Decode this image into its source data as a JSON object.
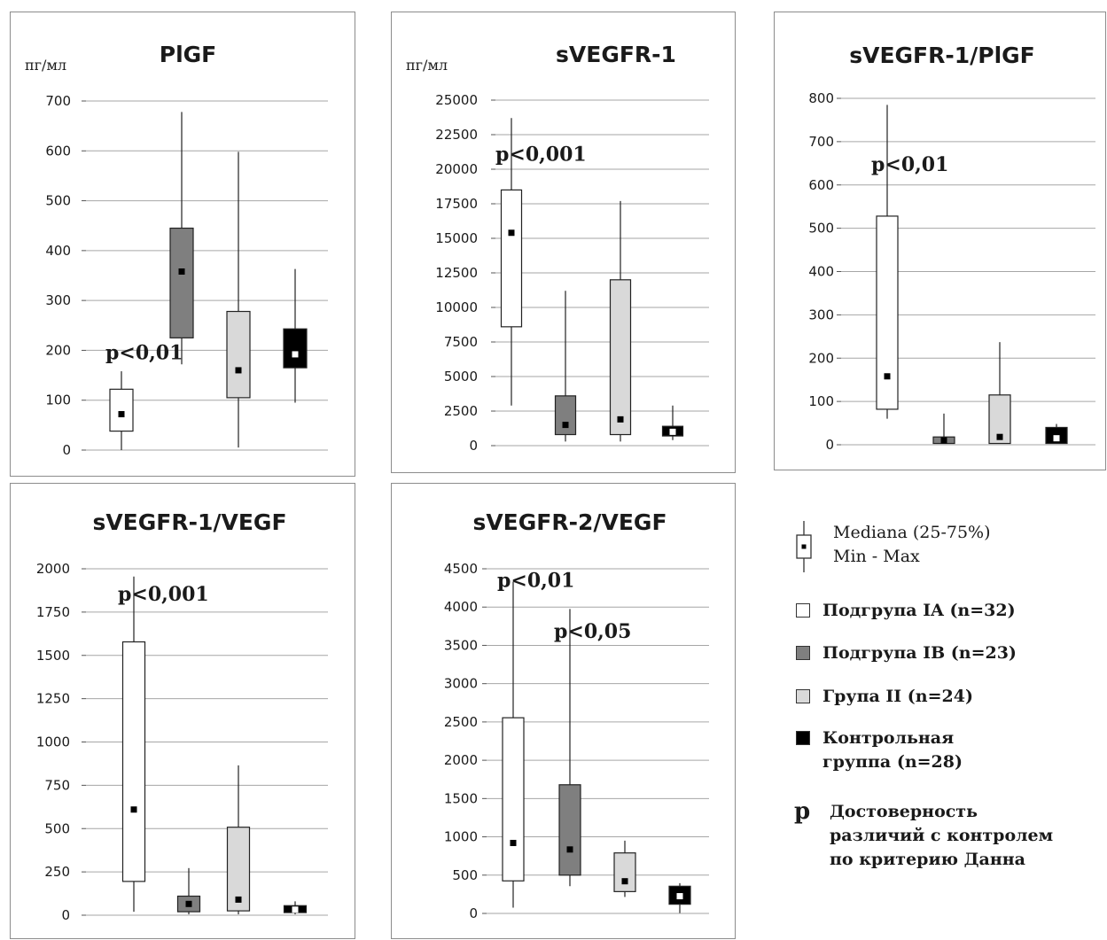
{
  "colors": {
    "group_ia": "#ffffff",
    "group_ib": "#7f7f7f",
    "group_ii": "#d9d9d9",
    "control": "#000000",
    "median_on_light": "#000000",
    "median_on_dark": "#ffffff",
    "gridline": "#a6a6a6",
    "panel_border": "#8c8c8c"
  },
  "chart_data": [
    {
      "type": "box",
      "title": "PlGF",
      "unit": "пг/мл",
      "ylim": [
        0,
        700
      ],
      "yticks": [
        0,
        100,
        200,
        300,
        400,
        500,
        600,
        700
      ],
      "tick_labels": [
        "0",
        "100",
        "200",
        "300",
        "400",
        "500",
        "600",
        "700"
      ],
      "grid": true,
      "boxes": [
        {
          "group": "Подгрупа IA (n=32)",
          "min": 0,
          "q1": 38,
          "median": 72,
          "q3": 122,
          "max": 158
        },
        {
          "group": "Подгрупа IB (n=23)",
          "min": 172,
          "q1": 225,
          "median": 358,
          "q3": 445,
          "max": 678
        },
        {
          "group": "Група II (n=24)",
          "min": 5,
          "q1": 105,
          "median": 160,
          "q3": 278,
          "max": 598
        },
        {
          "group": "Контрольная группа (n=28)",
          "min": 95,
          "q1": 165,
          "median": 192,
          "q3": 243,
          "max": 363
        }
      ],
      "annotations": [
        {
          "text": "p<0,01",
          "value": 182,
          "box": 0
        }
      ]
    },
    {
      "type": "box",
      "title": "sVEGFR-1",
      "unit": "пг/мл",
      "ylim": [
        0,
        25000
      ],
      "yticks": [
        0,
        2500,
        5000,
        7500,
        10000,
        12500,
        15000,
        17500,
        20000,
        22500,
        25000
      ],
      "tick_labels": [
        "0",
        "2500",
        "5000",
        "7500",
        "10000",
        "12500",
        "15000",
        "17500",
        "20000",
        "22500",
        "25000"
      ],
      "grid": true,
      "boxes": [
        {
          "group": "Подгрупа IA (n=32)",
          "min": 2900,
          "q1": 8600,
          "median": 15400,
          "q3": 18500,
          "max": 23700
        },
        {
          "group": "Подгрупа IB (n=23)",
          "min": 300,
          "q1": 800,
          "median": 1500,
          "q3": 3600,
          "max": 11200
        },
        {
          "group": "Група II (n=24)",
          "min": 300,
          "q1": 800,
          "median": 1900,
          "q3": 12000,
          "max": 17700
        },
        {
          "group": "Контрольная группа (n=28)",
          "min": 400,
          "q1": 700,
          "median": 1000,
          "q3": 1400,
          "max": 2900
        }
      ],
      "annotations": [
        {
          "text": "p<0,001",
          "value": 20600,
          "box": 0
        }
      ]
    },
    {
      "type": "box",
      "title": "sVEGFR-1/PlGF",
      "unit": "",
      "ylim": [
        0,
        800
      ],
      "yticks": [
        0,
        100,
        200,
        300,
        400,
        500,
        600,
        700,
        800
      ],
      "tick_labels": [
        "0",
        "100",
        "200",
        "300",
        "400",
        "500",
        "600",
        "700",
        "800"
      ],
      "grid": true,
      "boxes": [
        {
          "group": "Подгрупа IA (n=32)",
          "min": 60,
          "q1": 82,
          "median": 158,
          "q3": 528,
          "max": 785
        },
        {
          "group": "Подгрупа IB (n=23)",
          "min": 3,
          "q1": 3,
          "median": 10,
          "q3": 18,
          "max": 72
        },
        {
          "group": "Група II (n=24)",
          "min": 3,
          "q1": 3,
          "median": 18,
          "q3": 115,
          "max": 237
        },
        {
          "group": "Контрольная группа (n=28)",
          "min": 3,
          "q1": 3,
          "median": 15,
          "q3": 40,
          "max": 48
        }
      ],
      "annotations": [
        {
          "text": "p<0,01",
          "value": 632,
          "box": 0
        }
      ]
    },
    {
      "type": "box",
      "title": "sVEGFR-1/VEGF",
      "unit": "",
      "ylim": [
        0,
        2000
      ],
      "yticks": [
        0,
        250,
        500,
        750,
        1000,
        1250,
        1500,
        1750,
        2000
      ],
      "tick_labels": [
        "0",
        "250",
        "500",
        "750",
        "1000",
        "1250",
        "1500",
        "1750",
        "2000"
      ],
      "grid": true,
      "boxes": [
        {
          "group": "Подгрупа IA (n=32)",
          "min": 20,
          "q1": 195,
          "median": 610,
          "q3": 1578,
          "max": 1955
        },
        {
          "group": "Подгрупа IB (n=23)",
          "min": 5,
          "q1": 20,
          "median": 65,
          "q3": 110,
          "max": 272
        },
        {
          "group": "Група II (n=24)",
          "min": 5,
          "q1": 25,
          "median": 90,
          "q3": 508,
          "max": 865
        },
        {
          "group": "Контрольная группа (n=28)",
          "min": 5,
          "q1": 15,
          "median": 32,
          "q3": 55,
          "max": 80
        }
      ],
      "annotations": [
        {
          "text": "p<0,001",
          "value": 1815,
          "box": 0
        }
      ]
    },
    {
      "type": "box",
      "title": "sVEGFR-2/VEGF",
      "unit": "",
      "ylim": [
        0,
        4500
      ],
      "yticks": [
        0,
        500,
        1000,
        1500,
        2000,
        2500,
        3000,
        3500,
        4000,
        4500
      ],
      "tick_labels": [
        "0",
        "500",
        "1000",
        "1500",
        "2000",
        "2500",
        "3000",
        "3500",
        "4000",
        "4500"
      ],
      "grid": true,
      "boxes": [
        {
          "group": "Подгрупа IA (n=32)",
          "min": 75,
          "q1": 425,
          "median": 920,
          "q3": 2555,
          "max": 4330
        },
        {
          "group": "Подгрупа IB (n=23)",
          "min": 355,
          "q1": 500,
          "median": 835,
          "q3": 1680,
          "max": 3975
        },
        {
          "group": "Група II (n=24)",
          "min": 215,
          "q1": 285,
          "median": 420,
          "q3": 790,
          "max": 950
        },
        {
          "group": "Контрольная группа (n=28)",
          "min": 5,
          "q1": 120,
          "median": 225,
          "q3": 355,
          "max": 395
        }
      ],
      "annotations": [
        {
          "text": "p<0,01",
          "value": 4260,
          "box": 0
        },
        {
          "text": "p<0,05",
          "value": 3600,
          "box": 1
        }
      ]
    }
  ],
  "legend": {
    "median_label": "Mediana (25-75%)",
    "minmax_label": "Min - Max",
    "groups": [
      {
        "label": "Подгрупа IA (n=32)",
        "color": "#ffffff"
      },
      {
        "label": "Подгрупа IB (n=23)",
        "color": "#7f7f7f"
      },
      {
        "label": "Група II (n=24)",
        "color": "#d9d9d9"
      },
      {
        "label": "Контрольная\nгруппа (n=28)",
        "color": "#000000"
      }
    ],
    "p_symbol": "p",
    "p_text": "Достоверность\nразличий с контролем\nпо критерию Данна"
  }
}
